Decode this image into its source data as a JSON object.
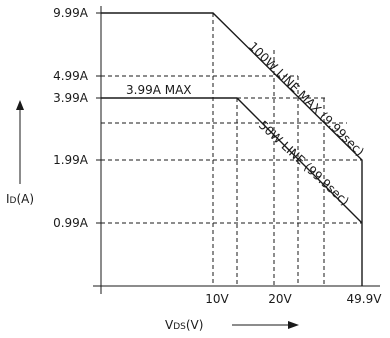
{
  "chart_data": {
    "type": "line",
    "title": "",
    "xlabel": {
      "main": "V",
      "sub": "DS",
      "unit": "(V)"
    },
    "ylabel": {
      "main": "I",
      "sub": "D",
      "unit": "(A)"
    },
    "x_ticks": [
      "10V",
      "20V",
      "49.9V"
    ],
    "y_ticks": [
      "9.99A",
      "4.99A",
      "3.99A",
      "1.99A",
      "0.99A"
    ],
    "series": [
      {
        "points": [
          {
            "x": 0,
            "y": 9.99
          },
          {
            "x": 10,
            "y": 9.99
          },
          {
            "x": 49.9,
            "y": 1.99
          }
        ]
      },
      {
        "points": [
          {
            "x": 0,
            "y": 3.99
          },
          {
            "x": 12.5,
            "y": 3.99
          },
          {
            "x": 49.9,
            "y": 0.99
          }
        ]
      }
    ],
    "annotations": {
      "max_current": "3.99A MAX",
      "line_100w": "100W LINE MAX (9.99sec)",
      "line_50w": "50W LINE (99.9sec)"
    }
  }
}
